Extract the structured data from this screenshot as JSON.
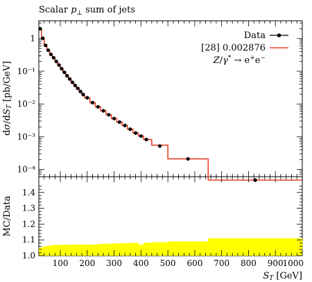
{
  "title": "Scalar p⊥ sum of jets",
  "title_parts": {
    "prefix": "Scalar ",
    "var": "p",
    "sub": "⊥",
    "suffix": " sum of jets"
  },
  "colors": {
    "data": "#000000",
    "mc": "#e8412a",
    "band": "#ffff00"
  },
  "legend": {
    "data_label": "Data",
    "mc_label": "[28] 0.002876",
    "process_label": "Z/γ* → e⁺e⁻"
  },
  "chart_data": [
    {
      "type": "line",
      "title": "Scalar p⊥ sum of jets",
      "ylabel": "dσ/dS_T [pb/GeV]",
      "xlabel": "",
      "xlim": [
        20,
        1000
      ],
      "ylim": [
        6e-05,
        3.5
      ],
      "yscale": "log",
      "ytick_labels": [
        "1",
        "10⁻¹",
        "10⁻²",
        "10⁻³",
        "10⁻⁴"
      ],
      "ytick_values": [
        1,
        0.1,
        0.01,
        0.001,
        0.0001
      ],
      "legend_position": "top-right",
      "series": [
        {
          "name": "Data",
          "points": [
            [
              25,
              2.0
            ],
            [
              35,
              1.02
            ],
            [
              45,
              0.62
            ],
            [
              55,
              0.44
            ],
            [
              65,
              0.33
            ],
            [
              75,
              0.26
            ],
            [
              85,
              0.2
            ],
            [
              95,
              0.155
            ],
            [
              105,
              0.12
            ],
            [
              115,
              0.093
            ],
            [
              125,
              0.073
            ],
            [
              135,
              0.058
            ],
            [
              145,
              0.046
            ],
            [
              155,
              0.037
            ],
            [
              165,
              0.03
            ],
            [
              175,
              0.024
            ],
            [
              185,
              0.0195
            ],
            [
              200,
              0.0155
            ],
            [
              220,
              0.011
            ],
            [
              240,
              0.0082
            ],
            [
              260,
              0.0062
            ],
            [
              280,
              0.0047
            ],
            [
              300,
              0.0036
            ],
            [
              320,
              0.0028
            ],
            [
              340,
              0.0022
            ],
            [
              360,
              0.0017
            ],
            [
              380,
              0.0013
            ],
            [
              400,
              0.00105
            ],
            [
              420,
              0.00082
            ],
            [
              470,
              0.00052
            ],
            [
              575,
              0.00021
            ],
            [
              825,
              4.7e-05
            ]
          ]
        },
        {
          "name": "[28] 0.002876",
          "bins": [
            [
              20,
              30,
              2.0
            ],
            [
              30,
              40,
              1.0
            ],
            [
              40,
              50,
              0.62
            ],
            [
              50,
              60,
              0.44
            ],
            [
              60,
              70,
              0.33
            ],
            [
              70,
              80,
              0.26
            ],
            [
              80,
              90,
              0.2
            ],
            [
              90,
              100,
              0.155
            ],
            [
              100,
              110,
              0.12
            ],
            [
              110,
              120,
              0.093
            ],
            [
              120,
              130,
              0.073
            ],
            [
              130,
              140,
              0.058
            ],
            [
              140,
              150,
              0.046
            ],
            [
              150,
              160,
              0.037
            ],
            [
              160,
              170,
              0.03
            ],
            [
              170,
              180,
              0.024
            ],
            [
              180,
              190,
              0.0195
            ],
            [
              190,
              210,
              0.0155
            ],
            [
              210,
              230,
              0.011
            ],
            [
              230,
              250,
              0.0082
            ],
            [
              250,
              270,
              0.0062
            ],
            [
              270,
              290,
              0.0047
            ],
            [
              290,
              310,
              0.0036
            ],
            [
              310,
              330,
              0.0028
            ],
            [
              330,
              350,
              0.0022
            ],
            [
              350,
              370,
              0.0017
            ],
            [
              370,
              390,
              0.0013
            ],
            [
              390,
              410,
              0.00105
            ],
            [
              410,
              440,
              0.00082
            ],
            [
              440,
              500,
              0.00055
            ],
            [
              500,
              650,
              0.00021
            ],
            [
              650,
              1000,
              4.7e-05
            ]
          ]
        }
      ]
    },
    {
      "type": "area",
      "title": "",
      "xlabel": "S_T [GeV]",
      "ylabel": "MC/Data",
      "xlim": [
        20,
        1000
      ],
      "ylim": [
        1.0,
        1.5
      ],
      "xtick_labels": [
        "100",
        "200",
        "300",
        "400",
        "500",
        "600",
        "700",
        "800",
        "900",
        "1000"
      ],
      "xtick_values": [
        100,
        200,
        300,
        400,
        500,
        600,
        700,
        800,
        900,
        1000
      ],
      "ytick_labels": [
        "1.0",
        "1.1",
        "1.2",
        "1.3",
        "1.4"
      ],
      "ytick_values": [
        1.0,
        1.1,
        1.2,
        1.3,
        1.4
      ],
      "series": [
        {
          "name": "",
          "bins": [
            [
              20,
              30,
              1.05
            ],
            [
              30,
              40,
              1.055
            ],
            [
              40,
              50,
              1.06
            ],
            [
              50,
              60,
              1.062
            ],
            [
              60,
              70,
              1.065
            ],
            [
              70,
              80,
              1.067
            ],
            [
              80,
              90,
              1.068
            ],
            [
              90,
              100,
              1.068
            ],
            [
              100,
              110,
              1.069
            ],
            [
              110,
              120,
              1.07
            ],
            [
              120,
              130,
              1.07
            ],
            [
              130,
              140,
              1.068
            ],
            [
              140,
              150,
              1.07
            ],
            [
              150,
              160,
              1.071
            ],
            [
              160,
              170,
              1.071
            ],
            [
              170,
              180,
              1.07
            ],
            [
              180,
              190,
              1.072
            ],
            [
              190,
              210,
              1.07
            ],
            [
              210,
              230,
              1.07
            ],
            [
              230,
              250,
              1.072
            ],
            [
              250,
              270,
              1.075
            ],
            [
              270,
              290,
              1.076
            ],
            [
              290,
              310,
              1.077
            ],
            [
              310,
              330,
              1.078
            ],
            [
              330,
              350,
              1.079
            ],
            [
              350,
              370,
              1.08
            ],
            [
              370,
              390,
              1.082
            ],
            [
              390,
              410,
              1.07
            ],
            [
              410,
              440,
              1.083
            ],
            [
              440,
              500,
              1.085
            ],
            [
              500,
              650,
              1.09
            ],
            [
              650,
              1000,
              1.11
            ]
          ]
        }
      ]
    }
  ]
}
